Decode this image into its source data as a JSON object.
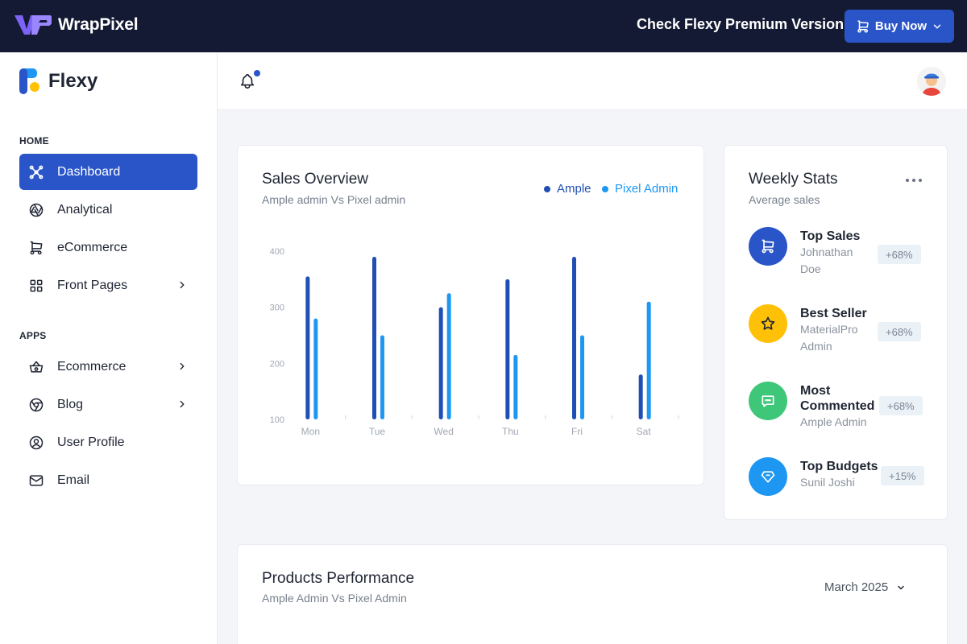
{
  "topbar": {
    "brand": "WrapPixel",
    "premium_text": "Check Flexy Premium Version",
    "buy_label": "Buy Now"
  },
  "sidebar": {
    "app_name": "Flexy",
    "sections": {
      "home": "HOME",
      "apps": "APPS"
    },
    "items": [
      {
        "label": "Dashboard",
        "icon": "dashboard-icon"
      },
      {
        "label": "Analytical",
        "icon": "aperture-icon"
      },
      {
        "label": "eCommerce",
        "icon": "cart-icon"
      },
      {
        "label": "Front Pages",
        "icon": "grid-icon"
      },
      {
        "label": "Ecommerce",
        "icon": "basket-icon"
      },
      {
        "label": "Blog",
        "icon": "chrome-icon"
      },
      {
        "label": "User Profile",
        "icon": "user-circle-icon"
      },
      {
        "label": "Email",
        "icon": "mail-icon"
      }
    ]
  },
  "sales_overview": {
    "title": "Sales Overview",
    "subtitle": "Ample admin Vs Pixel admin",
    "legend": [
      "Ample",
      "Pixel Admin"
    ]
  },
  "weekly": {
    "title": "Weekly Stats",
    "subtitle": "Average sales",
    "stats": [
      {
        "title": "Top Sales",
        "sub": "Johnathan Doe",
        "badge": "+68%",
        "color": "#2a55c9",
        "icon": "cart-icon"
      },
      {
        "title": "Best Seller",
        "sub": "MaterialPro Admin",
        "badge": "+68%",
        "color": "#ffc107",
        "icon": "star-icon"
      },
      {
        "title": "Most Commented",
        "sub": "Ample Admin",
        "badge": "+68%",
        "color": "#3ec778",
        "icon": "message-icon"
      },
      {
        "title": "Top Budgets",
        "sub": "Sunil Joshi",
        "badge": "+15%",
        "color": "#1e97f3",
        "icon": "diamond-icon"
      }
    ]
  },
  "products": {
    "title": "Products Performance",
    "subtitle": "Ample Admin Vs Pixel Admin",
    "month": "March 2025"
  },
  "chart_data": {
    "type": "bar",
    "categories": [
      "Mon",
      "Tue",
      "Wed",
      "Thu",
      "Fri",
      "Sat"
    ],
    "series": [
      {
        "name": "Ample",
        "values": [
          355,
          390,
          300,
          350,
          390,
          180
        ],
        "color": "#1f4fb4"
      },
      {
        "name": "Pixel Admin",
        "values": [
          280,
          250,
          325,
          215,
          250,
          310
        ],
        "color": "#1e97f3"
      }
    ],
    "ylim": [
      100,
      400
    ],
    "yticks": [
      100,
      200,
      300,
      400
    ],
    "legend_position": "top-right",
    "grid": false
  }
}
